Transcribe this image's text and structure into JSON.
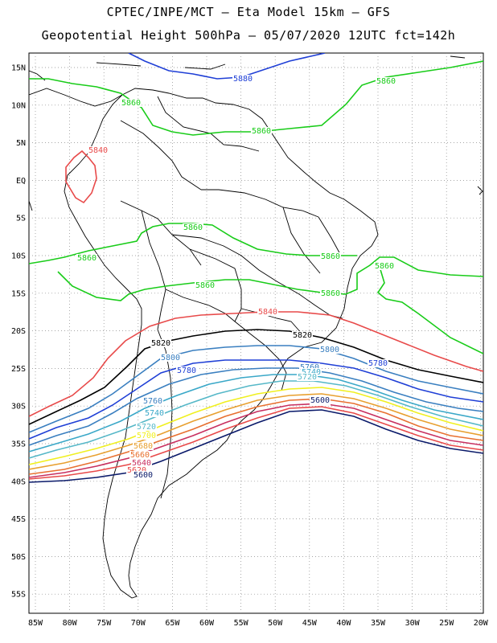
{
  "header": {
    "line1": "CPTEC/INPE/MCT –  Eta Model 15km – GFS",
    "line2": "Geopotential Height 500hPa – 05/07/2020 12UTC fct=142h"
  },
  "axes": {
    "lat_labels": [
      "15N",
      "10N",
      "5N",
      "EQ",
      "5S",
      "10S",
      "15S",
      "20S",
      "25S",
      "30S",
      "35S",
      "40S",
      "45S",
      "50S",
      "55S"
    ],
    "lon_labels": [
      "85W",
      "80W",
      "75W",
      "70W",
      "65W",
      "60W",
      "55W",
      "50W",
      "45W",
      "40W",
      "35W",
      "30W",
      "25W",
      "20W"
    ]
  },
  "colors": {
    "c5880": "#1f3fd6",
    "c5860": "#19cc19",
    "c5840": "#e84a4a",
    "c5820": "#000000",
    "c5800": "#3a7fc0",
    "c5780": "#1f3fd6",
    "c5760": "#3a7fc0",
    "c5740": "#3aa8c8",
    "c5720": "#56b8c8",
    "c5700": "#f0f020",
    "c5680": "#e8a030",
    "c5660": "#e87030",
    "c5640": "#c83060",
    "c5620": "#e84a4a",
    "c5600": "#0a1a6a",
    "coast": "#000000"
  },
  "contour_labels": [
    {
      "text": "5880",
      "color_key": "c5880"
    },
    {
      "text": "5860",
      "color_key": "c5860"
    },
    {
      "text": "5860",
      "color_key": "c5860"
    },
    {
      "text": "5860",
      "color_key": "c5860"
    },
    {
      "text": "5860",
      "color_key": "c5860"
    },
    {
      "text": "5860",
      "color_key": "c5860"
    },
    {
      "text": "5860",
      "color_key": "c5860"
    },
    {
      "text": "5860",
      "color_key": "c5860"
    },
    {
      "text": "5860",
      "color_key": "c5860"
    },
    {
      "text": "5860",
      "color_key": "c5860"
    },
    {
      "text": "5840",
      "color_key": "c5840"
    },
    {
      "text": "5840",
      "color_key": "c5840"
    },
    {
      "text": "5820",
      "color_key": "c5820"
    },
    {
      "text": "5820",
      "color_key": "c5820"
    },
    {
      "text": "5800",
      "color_key": "c5800"
    },
    {
      "text": "5800",
      "color_key": "c5800"
    },
    {
      "text": "5780",
      "color_key": "c5780"
    },
    {
      "text": "5780",
      "color_key": "c5780"
    },
    {
      "text": "5760",
      "color_key": "c5760"
    },
    {
      "text": "5760",
      "color_key": "c5760"
    },
    {
      "text": "5740",
      "color_key": "c5740"
    },
    {
      "text": "5740",
      "color_key": "c5740"
    },
    {
      "text": "5720",
      "color_key": "c5720"
    },
    {
      "text": "5720",
      "color_key": "c5720"
    },
    {
      "text": "5700",
      "color_key": "c5700"
    },
    {
      "text": "5680",
      "color_key": "c5680"
    },
    {
      "text": "5660",
      "color_key": "c5660"
    },
    {
      "text": "5640",
      "color_key": "c5640"
    },
    {
      "text": "5620",
      "color_key": "c5620"
    },
    {
      "text": "5600",
      "color_key": "c5600"
    },
    {
      "text": "5620",
      "color_key": "c5620"
    },
    {
      "text": "5600",
      "color_key": "c5600"
    }
  ]
}
